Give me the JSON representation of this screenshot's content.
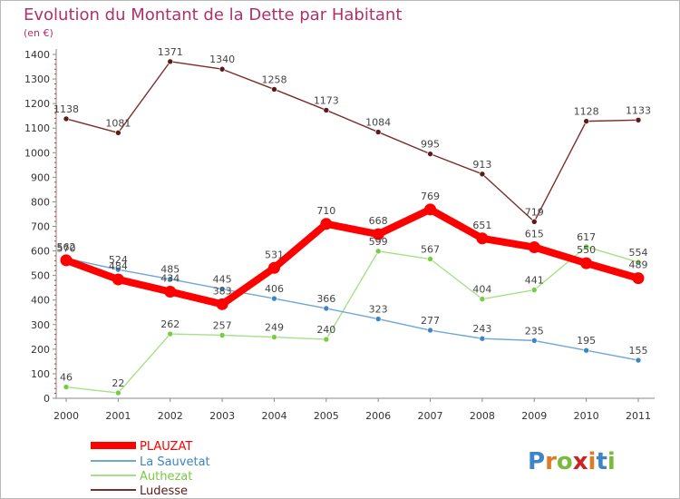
{
  "chart_data": {
    "type": "line",
    "title": "Evolution du Montant de la Dette par Habitant",
    "unit_label": "(en €)",
    "categories": [
      "2000",
      "2001",
      "2002",
      "2003",
      "2004",
      "2005",
      "2006",
      "2007",
      "2008",
      "2009",
      "2010",
      "2011"
    ],
    "ylim": [
      0,
      1400
    ],
    "yticks": [
      0,
      100,
      200,
      300,
      400,
      500,
      600,
      700,
      800,
      900,
      1000,
      1100,
      1200,
      1300,
      1400
    ],
    "grid": false,
    "legend_position": "bottom-left",
    "series": [
      {
        "name": "PLAUZAT",
        "color": "#ff0000",
        "marker_color": "#ff0000",
        "values": [
          562,
          484,
          434,
          383,
          531,
          710,
          668,
          769,
          651,
          615,
          550,
          489
        ]
      },
      {
        "name": "La Sauvetat",
        "color": "#6ea6d8",
        "marker_color": "#3d85c6",
        "values": [
          570,
          524,
          485,
          445,
          406,
          366,
          323,
          277,
          243,
          235,
          195,
          155
        ]
      },
      {
        "name": "Authezat",
        "color": "#a6e08a",
        "marker_color": "#77cc44",
        "values": [
          46,
          22,
          262,
          257,
          249,
          240,
          599,
          567,
          404,
          441,
          617,
          554
        ]
      },
      {
        "name": "Ludesse",
        "color": "#7a2d2d",
        "marker_color": "#5e1a1a",
        "values": [
          1138,
          1081,
          1371,
          1340,
          1258,
          1173,
          1084,
          995,
          913,
          719,
          1128,
          1133
        ]
      }
    ]
  },
  "logo": {
    "text": "Proxiti",
    "letter_colors": [
      "#3d85c6",
      "#e07b24",
      "#7cba3d",
      "#cc2222",
      "#e07b24",
      "#3d85c6",
      "#7cba3d"
    ]
  }
}
